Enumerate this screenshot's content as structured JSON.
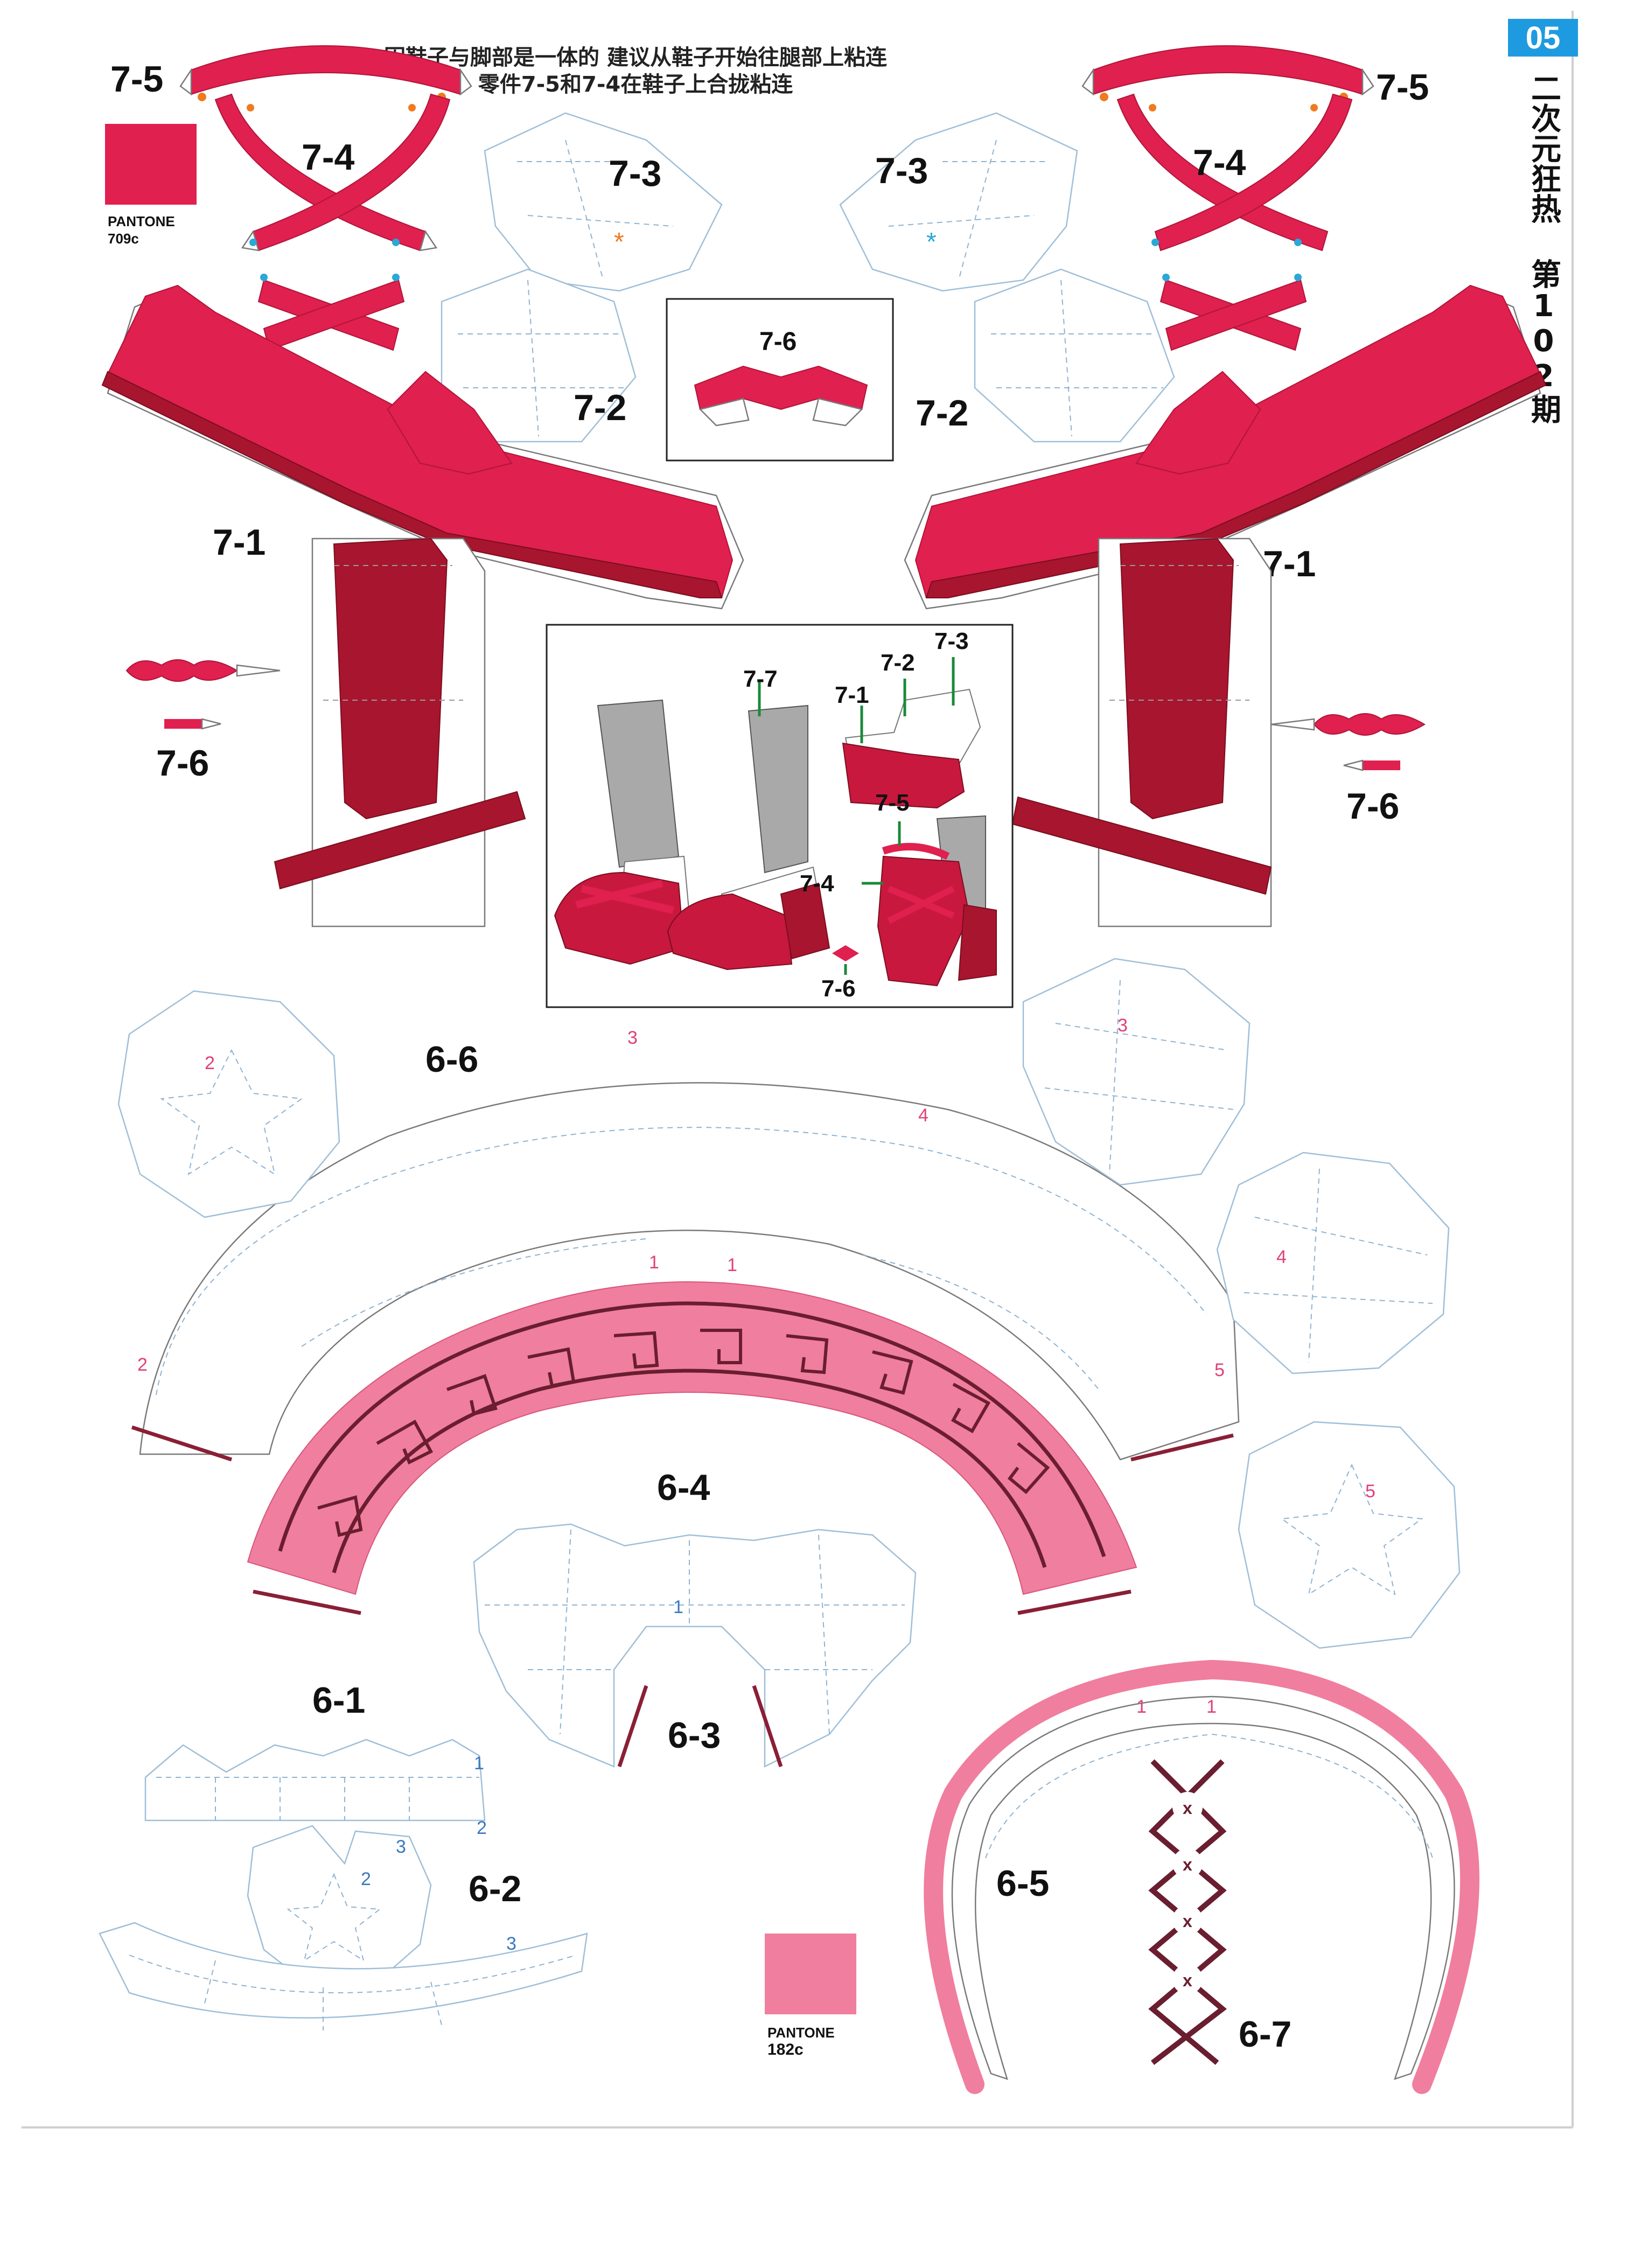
{
  "header": {
    "page_number": "05",
    "series_title": "二次元狂热 第102期",
    "instruction_line1": "因鞋子与脚部是一体的 建议从鞋子开始往腿部上粘连",
    "instruction_line2": "零件7-5和7-4在鞋子上合拢粘连"
  },
  "swatches": [
    {
      "brand": "PANTONE",
      "code": "709c",
      "color": "#e0204f"
    },
    {
      "brand": "PANTONE",
      "code": "182c",
      "color": "#f07e9e"
    }
  ],
  "parts": {
    "p7_1": "7-1",
    "p7_2": "7-2",
    "p7_3": "7-3",
    "p7_4": "7-4",
    "p7_5": "7-5",
    "p7_6": "7-6",
    "p7_7": "7-7",
    "p6_1": "6-1",
    "p6_2": "6-2",
    "p6_3": "6-3",
    "p6_4": "6-4",
    "p6_5": "6-5",
    "p6_6": "6-6",
    "p6_7": "6-7"
  },
  "glue_marks": {
    "one": "1",
    "two": "2",
    "three": "3",
    "four": "4",
    "five": "5",
    "x": "x",
    "star": "*"
  },
  "colors": {
    "red": "#e0204f",
    "dark_red": "#a8152e",
    "pink": "#f07e9e",
    "maroon": "#6a1e30",
    "header_blue": "#1e9be0",
    "glue_pink": "#e0407a",
    "glue_blue": "#3a78c0",
    "orange": "#f07a1e",
    "cyan": "#2aa8d8",
    "arrow_green": "#1a8a3a"
  }
}
